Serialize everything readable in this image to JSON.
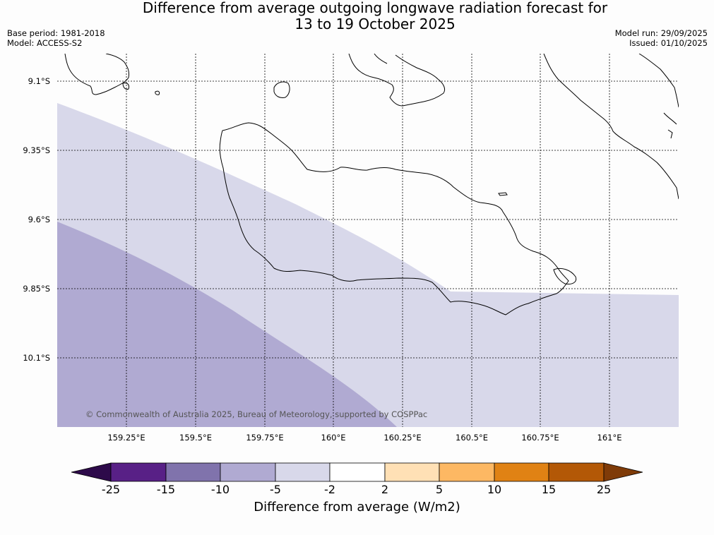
{
  "title": {
    "line1": "Difference from average outgoing longwave radiation forecast for",
    "line2": "13 to 19 October 2025"
  },
  "meta_left": {
    "base_period": "Base period: 1981-2018",
    "model": "Model: ACCESS-S2"
  },
  "meta_right": {
    "model_run": "Model run: 29/09/2025",
    "issued": "Issued: 01/10/2025"
  },
  "map": {
    "lat_labels": [
      "9.1°S",
      "9.35°S",
      "9.6°S",
      "9.85°S",
      "10.1°S"
    ],
    "lon_labels": [
      "159.25°E",
      "159.5°E",
      "159.75°E",
      "160°E",
      "160.25°E",
      "160.5°E",
      "160.75°E",
      "161°E"
    ],
    "copyright": "© Commonwealth of Australia 2025, Bureau of Meteorology, supported by COSPPac",
    "colors": {
      "band_minus10_to_minus5": "#b0aad2",
      "band_minus5_to_minus2": "#d8d8ea",
      "coast": "#000000"
    }
  },
  "colorbar": {
    "title": "Difference from average (W/m2)",
    "ticks": [
      "-25",
      "-15",
      "-10",
      "-5",
      "-2",
      "2",
      "5",
      "10",
      "15",
      "25"
    ],
    "colors": {
      "under": "#2d0a4a",
      "bins": [
        "#582086",
        "#8073ac",
        "#b0aad2",
        "#d8d8ea",
        "#ffffff",
        "#ffe0b5",
        "#fdb863",
        "#e08214",
        "#b35806"
      ],
      "over": "#7f3b08"
    }
  }
}
